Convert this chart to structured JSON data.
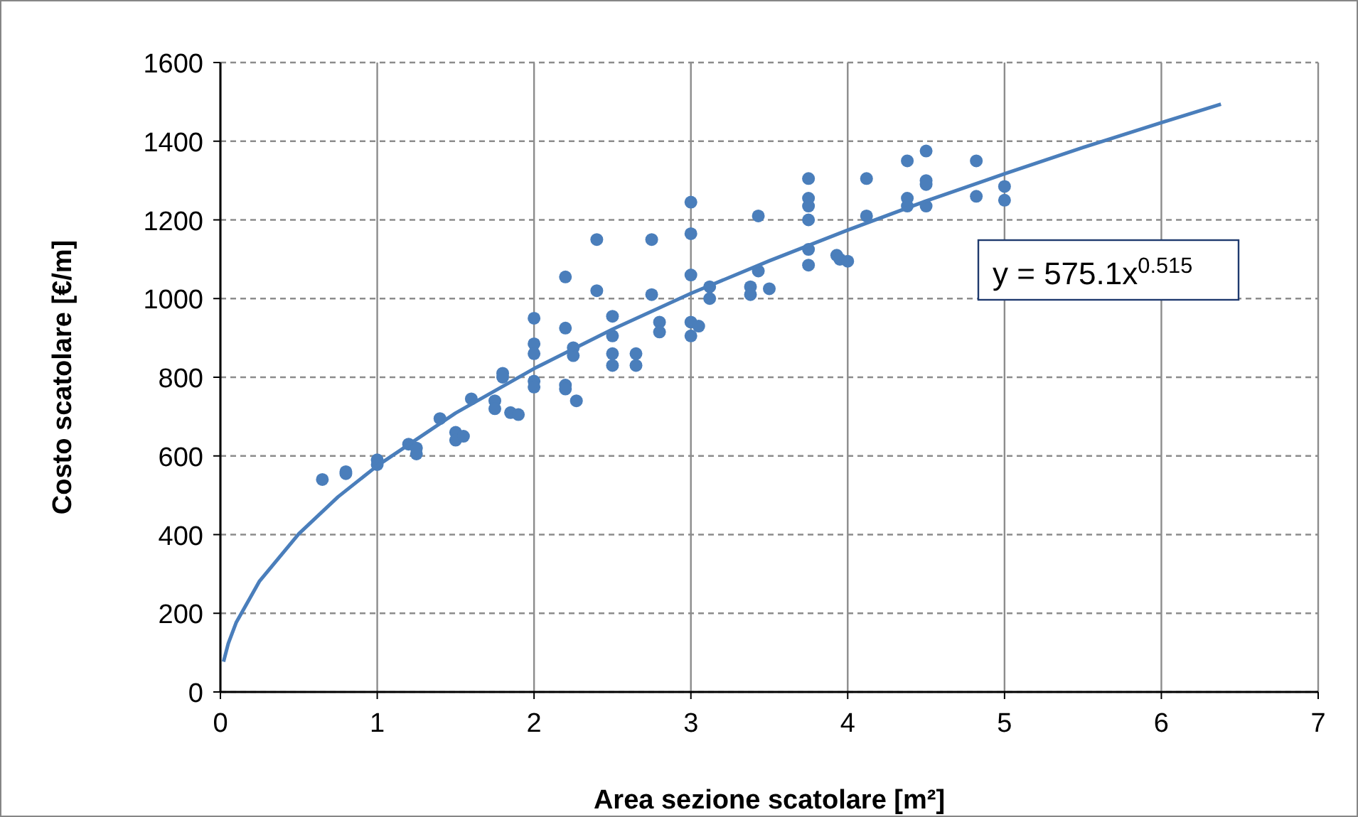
{
  "chart_data": {
    "type": "scatter",
    "xlabel": "Area sezione scatolare [m²]",
    "ylabel": "Costo scatolare [€/m]",
    "xlim": [
      0,
      7
    ],
    "xticks": [
      0,
      1,
      2,
      3,
      4,
      5,
      6,
      7
    ],
    "ylim": [
      0,
      1600
    ],
    "yticks": [
      0,
      200,
      400,
      600,
      800,
      1000,
      1200,
      1400,
      1600
    ],
    "grid": true,
    "marker": "circle",
    "annotations": [
      "y = 575.1x$^{0.515}$"
    ],
    "series": [
      {
        "color": "#4a7ebb",
        "x": [
          0.65,
          0.8,
          0.8,
          1.0,
          1.0,
          1.2,
          1.25,
          1.25,
          1.4,
          1.5,
          1.5,
          1.55,
          1.6,
          1.75,
          1.75,
          1.8,
          1.8,
          1.85,
          1.9,
          2.0,
          2.0,
          2.0,
          2.0,
          2.0,
          2.2,
          2.2,
          2.2,
          2.2,
          2.25,
          2.25,
          2.27,
          2.4,
          2.4,
          2.5,
          2.5,
          2.5,
          2.5,
          2.65,
          2.65,
          2.75,
          2.75,
          2.8,
          2.8,
          3.0,
          3.0,
          3.0,
          3.0,
          3.0,
          3.05,
          3.12,
          3.12,
          3.38,
          3.38,
          3.43,
          3.43,
          3.5,
          3.75,
          3.75,
          3.75,
          3.75,
          3.75,
          3.75,
          3.93,
          3.95,
          4.0,
          4.12,
          4.12,
          4.38,
          4.38,
          4.38,
          4.5,
          4.5,
          4.5,
          4.5,
          4.82,
          4.82,
          5.0,
          5.0
        ],
        "values": [
          540,
          560,
          555,
          590,
          578,
          630,
          620,
          605,
          695,
          660,
          640,
          650,
          745,
          740,
          720,
          810,
          800,
          710,
          705,
          950,
          885,
          860,
          790,
          775,
          1055,
          925,
          780,
          770,
          875,
          855,
          740,
          1150,
          1020,
          955,
          905,
          860,
          830,
          860,
          830,
          1150,
          1010,
          940,
          915,
          1245,
          1165,
          1060,
          940,
          905,
          930,
          1030,
          1000,
          1030,
          1010,
          1210,
          1070,
          1025,
          1305,
          1255,
          1235,
          1200,
          1125,
          1085,
          1110,
          1100,
          1095,
          1305,
          1210,
          1350,
          1255,
          1235,
          1375,
          1300,
          1290,
          1235,
          1350,
          1260,
          1285,
          1250
        ]
      },
      {
        "type": "line",
        "color": "#4a7ebb",
        "marker": "none",
        "x": [
          0.02,
          0.05,
          0.1,
          0.25,
          0.5,
          0.75,
          1,
          1.5,
          2,
          2.5,
          3,
          3.5,
          4,
          4.5,
          5,
          5.5,
          6,
          6.38
        ],
        "values": [
          77,
          123,
          176,
          282,
          402,
          496,
          575,
          709,
          822,
          922,
          1013,
          1096,
          1174,
          1248,
          1317,
          1384,
          1447,
          1494
        ]
      }
    ]
  }
}
